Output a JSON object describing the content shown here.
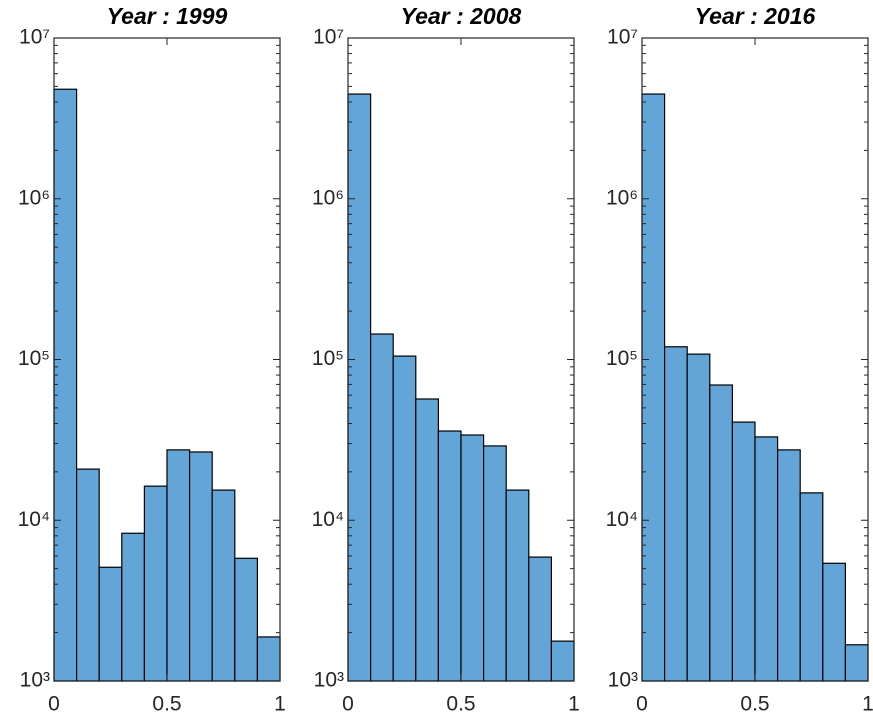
{
  "chart_data": [
    {
      "type": "histogram",
      "title": "Year : 1999",
      "log_scale": "y",
      "color": "#64a5d8",
      "edge_color": "#000000",
      "bins": [
        0,
        0.1,
        0.2,
        0.3,
        0.4,
        0.5,
        0.6,
        0.7,
        0.8,
        0.9,
        1
      ],
      "values": [
        4800000,
        20800,
        5100,
        8300,
        16300,
        27400,
        26600,
        15400,
        5800,
        1880
      ],
      "xlim": [
        0,
        1
      ],
      "xticks": [
        0,
        0.5,
        1
      ],
      "ylim": [
        1000,
        10000000
      ],
      "yticks": [
        {
          "value": 1000,
          "label": "10³"
        },
        {
          "value": 10000,
          "label": "10⁴"
        },
        {
          "value": 100000,
          "label": "10⁵"
        },
        {
          "value": 1000000,
          "label": "10⁶"
        },
        {
          "value": 10000000,
          "label": "10⁷"
        }
      ]
    },
    {
      "type": "histogram",
      "title": "Year : 2008",
      "log_scale": "y",
      "color": "#64a5d8",
      "edge_color": "#000000",
      "bins": [
        0,
        0.1,
        0.2,
        0.3,
        0.4,
        0.5,
        0.6,
        0.7,
        0.8,
        0.9,
        1
      ],
      "values": [
        4480000,
        144000,
        105000,
        56800,
        35900,
        33900,
        29000,
        15400,
        5900,
        1770
      ],
      "xlim": [
        0,
        1
      ],
      "xticks": [
        0,
        0.5,
        1
      ],
      "ylim": [
        1000,
        10000000
      ],
      "yticks": [
        {
          "value": 1000,
          "label": "10³"
        },
        {
          "value": 10000,
          "label": "10⁴"
        },
        {
          "value": 100000,
          "label": "10⁵"
        },
        {
          "value": 1000000,
          "label": "10⁶"
        },
        {
          "value": 10000000,
          "label": "10⁷"
        }
      ]
    },
    {
      "type": "histogram",
      "title": "Year : 2016",
      "log_scale": "y",
      "color": "#64a5d8",
      "edge_color": "#000000",
      "bins": [
        0,
        0.1,
        0.2,
        0.3,
        0.4,
        0.5,
        0.6,
        0.7,
        0.8,
        0.9,
        1
      ],
      "values": [
        4480000,
        120000,
        108000,
        69400,
        40800,
        33000,
        27400,
        14800,
        5400,
        1680
      ],
      "xlim": [
        0,
        1
      ],
      "xticks": [
        0,
        0.5,
        1
      ],
      "ylim": [
        1000,
        10000000
      ],
      "yticks": [
        {
          "value": 1000,
          "label": "10³"
        },
        {
          "value": 10000,
          "label": "10⁴"
        },
        {
          "value": 100000,
          "label": "10⁵"
        },
        {
          "value": 1000000,
          "label": "10⁶"
        },
        {
          "value": 10000000,
          "label": "10⁷"
        }
      ]
    }
  ]
}
